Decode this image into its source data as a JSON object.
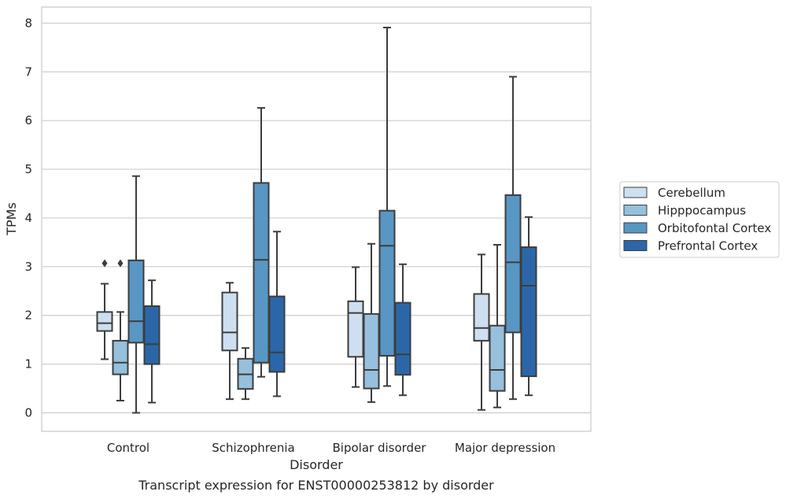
{
  "chart_data": {
    "type": "box",
    "caption": "Transcript expression for ENST00000253812 by disorder",
    "xlabel": "Disorder",
    "ylabel": "TPMs",
    "ylim": [
      -0.38,
      8.33
    ],
    "yticks": [
      0,
      1,
      2,
      3,
      4,
      5,
      6,
      7,
      8
    ],
    "grid": "horizontal",
    "legend_position": "right",
    "categories": [
      "Control",
      "Schizophrenia",
      "Bipolar disorder",
      "Major depression"
    ],
    "series": [
      {
        "name": "Cerebellum",
        "color": "#cddff0",
        "boxes": [
          {
            "whislo": 1.1,
            "q1": 1.68,
            "med": 1.84,
            "q3": 2.07,
            "whishi": 2.65,
            "fliers": [
              3.07
            ]
          },
          {
            "whislo": 0.28,
            "q1": 1.28,
            "med": 1.65,
            "q3": 2.47,
            "whishi": 2.67,
            "fliers": []
          },
          {
            "whislo": 0.53,
            "q1": 1.15,
            "med": 2.05,
            "q3": 2.29,
            "whishi": 2.99,
            "fliers": []
          },
          {
            "whislo": 0.06,
            "q1": 1.48,
            "med": 1.74,
            "q3": 2.44,
            "whishi": 3.25,
            "fliers": []
          }
        ]
      },
      {
        "name": "Hipppocampus",
        "color": "#96c0dc",
        "boxes": [
          {
            "whislo": 0.25,
            "q1": 0.79,
            "med": 1.03,
            "q3": 1.48,
            "whishi": 2.07,
            "fliers": [
              3.07
            ]
          },
          {
            "whislo": 0.28,
            "q1": 0.49,
            "med": 0.79,
            "q3": 1.11,
            "whishi": 1.33,
            "fliers": []
          },
          {
            "whislo": 0.22,
            "q1": 0.5,
            "med": 0.88,
            "q3": 2.03,
            "whishi": 3.47,
            "fliers": []
          },
          {
            "whislo": 0.11,
            "q1": 0.45,
            "med": 0.88,
            "q3": 1.79,
            "whishi": 3.45,
            "fliers": []
          }
        ]
      },
      {
        "name": "Orbitofontal Cortex",
        "color": "#5896c4",
        "boxes": [
          {
            "whislo": 0.0,
            "q1": 1.44,
            "med": 1.88,
            "q3": 3.13,
            "whishi": 4.86,
            "fliers": []
          },
          {
            "whislo": 0.74,
            "q1": 1.03,
            "med": 3.14,
            "q3": 4.72,
            "whishi": 6.26,
            "fliers": []
          },
          {
            "whislo": 0.55,
            "q1": 1.17,
            "med": 3.43,
            "q3": 4.15,
            "whishi": 7.91,
            "fliers": []
          },
          {
            "whislo": 0.28,
            "q1": 1.65,
            "med": 3.09,
            "q3": 4.47,
            "whishi": 6.9,
            "fliers": []
          }
        ]
      },
      {
        "name": "Prefrontal Cortex",
        "color": "#2b67a8",
        "boxes": [
          {
            "whislo": 0.21,
            "q1": 1.0,
            "med": 1.41,
            "q3": 2.19,
            "whishi": 2.72,
            "fliers": []
          },
          {
            "whislo": 0.34,
            "q1": 0.84,
            "med": 1.24,
            "q3": 2.39,
            "whishi": 3.72,
            "fliers": []
          },
          {
            "whislo": 0.36,
            "q1": 0.78,
            "med": 1.2,
            "q3": 2.26,
            "whishi": 3.05,
            "fliers": []
          },
          {
            "whislo": 0.36,
            "q1": 0.75,
            "med": 2.61,
            "q3": 3.4,
            "whishi": 4.02,
            "fliers": []
          }
        ]
      }
    ]
  },
  "colors": {
    "grid": "#cccccc",
    "frame": "#cccccc",
    "line": "#3d3d3d"
  }
}
